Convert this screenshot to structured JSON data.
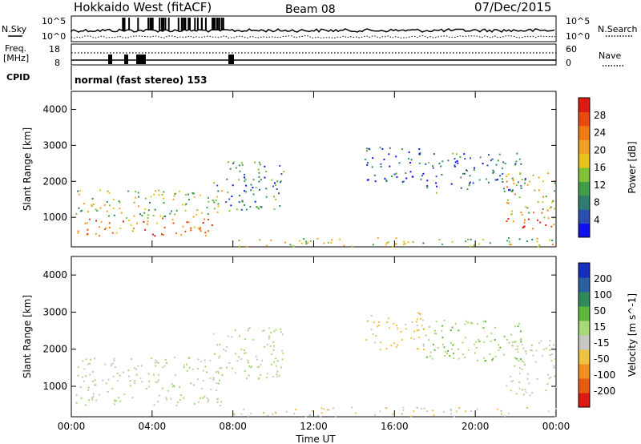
{
  "header": {
    "station": "Hokkaido West (fitACF)",
    "beam": "Beam 08",
    "date": "07/Dec/2015"
  },
  "summary": {
    "nsky_label": "N.Sky",
    "nsearch_label": "N.Search",
    "freq_label": "Freq.",
    "freq_unit": "[MHz]",
    "nave_label": "Nave",
    "cpid_label": "CPID",
    "cpid_text": "normal (fast stereo) 153",
    "left_ticks_counts": [
      "10^5",
      "10^0"
    ],
    "right_ticks_counts": [
      "10^5",
      "10^0"
    ],
    "left_ticks_freq": [
      "18",
      "8"
    ],
    "right_ticks_nave": [
      "60",
      "0"
    ]
  },
  "chart_data": [
    {
      "type": "heatmap",
      "title": "",
      "xlabel": "Time UT",
      "ylabel": "Slant Range [km]",
      "xticks": [
        "00:00",
        "04:00",
        "08:00",
        "12:00",
        "16:00",
        "20:00",
        "00:00"
      ],
      "xlim": [
        0,
        24
      ],
      "ylim": [
        180,
        4500
      ],
      "yticks": [
        1000,
        2000,
        3000,
        4000
      ],
      "colorbar": {
        "label": "Power [dB]",
        "ticks": [
          "4",
          "8",
          "12",
          "16",
          "20",
          "24",
          "28"
        ],
        "colors": [
          "#1010ee",
          "#2a4fb0",
          "#2e7d6e",
          "#3e9e4a",
          "#7fc23a",
          "#e8c21a",
          "#f0a020",
          "#f07a10",
          "#e84a10",
          "#dd1a10"
        ]
      },
      "blobs": [
        {
          "t0": 0.2,
          "t1": 7.5,
          "r0": 500,
          "r1": 1800,
          "v": 18
        },
        {
          "t0": 7.0,
          "t1": 10.5,
          "r0": 1200,
          "r1": 2600,
          "v": 12
        },
        {
          "t0": 14.5,
          "t1": 17.5,
          "r0": 2000,
          "r1": 3000,
          "v": 9
        },
        {
          "t0": 17.5,
          "t1": 22.5,
          "r0": 1700,
          "r1": 2800,
          "v": 11
        },
        {
          "t0": 21.5,
          "t1": 24,
          "r0": 700,
          "r1": 2300,
          "v": 20
        },
        {
          "t0": 8.0,
          "t1": 24,
          "r0": 200,
          "r1": 450,
          "v": 10
        }
      ]
    },
    {
      "type": "heatmap",
      "title": "",
      "xlabel": "Time UT",
      "ylabel": "Slant Range [km]",
      "xticks": [
        "00:00",
        "04:00",
        "08:00",
        "12:00",
        "16:00",
        "20:00",
        "00:00"
      ],
      "xlim": [
        0,
        24
      ],
      "ylim": [
        180,
        4500
      ],
      "yticks": [
        1000,
        2000,
        3000,
        4000
      ],
      "colorbar": {
        "label": "Velocity [m s^-1]",
        "ticks": [
          "200",
          "100",
          "50",
          "15",
          "-15",
          "-50",
          "-100",
          "-200"
        ],
        "colors": [
          "#1530c0",
          "#2a5fa0",
          "#2e8a5a",
          "#5ab83a",
          "#a8d878",
          "#c8c8c0",
          "#f0c040",
          "#f09020",
          "#e85a10",
          "#dd1a10"
        ]
      },
      "blobs": [
        {
          "t0": 0.2,
          "t1": 7.5,
          "r0": 500,
          "r1": 1800,
          "v": 0
        },
        {
          "t0": 7.0,
          "t1": 10.5,
          "r0": 1200,
          "r1": 2600,
          "v": 5
        },
        {
          "t0": 14.5,
          "t1": 17.5,
          "r0": 2000,
          "r1": 3000,
          "v": -60
        },
        {
          "t0": 17.5,
          "t1": 22.5,
          "r0": 1700,
          "r1": 2800,
          "v": 30
        },
        {
          "t0": 21.5,
          "t1": 24,
          "r0": 700,
          "r1": 2300,
          "v": 0
        },
        {
          "t0": 8.0,
          "t1": 24,
          "r0": 200,
          "r1": 450,
          "v": -40
        }
      ]
    }
  ]
}
